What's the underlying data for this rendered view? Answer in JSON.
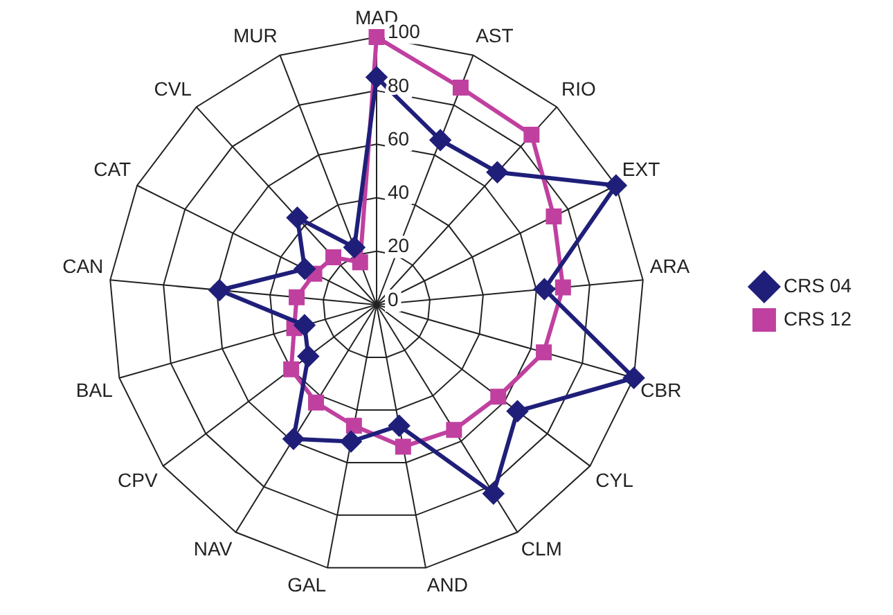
{
  "chart_data": {
    "type": "radar",
    "categories": [
      "MAD",
      "AST",
      "RIO",
      "EXT",
      "ARA",
      "CBR",
      "CYL",
      "CLM",
      "AND",
      "GAL",
      "NAV",
      "CPV",
      "BAL",
      "CAN",
      "CAT",
      "CVL",
      "MUR"
    ],
    "series": [
      {
        "name": "CRS 04",
        "color": "#1f1f7a",
        "marker": "diamond",
        "values": [
          85,
          66,
          67,
          100,
          63,
          100,
          66,
          83,
          46,
          52,
          59,
          32,
          28,
          59,
          30,
          44,
          23
        ]
      },
      {
        "name": "CRS 12",
        "color": "#c040a0",
        "marker": "square",
        "values": [
          100,
          87,
          86,
          74,
          70,
          65,
          57,
          55,
          54,
          46,
          43,
          40,
          32,
          30,
          26,
          24,
          17
        ]
      }
    ],
    "ylim": [
      0,
      100
    ],
    "yticks": [
      0,
      20,
      40,
      60,
      80,
      100
    ],
    "grid": true,
    "legend": "right",
    "line_style": "solid"
  }
}
